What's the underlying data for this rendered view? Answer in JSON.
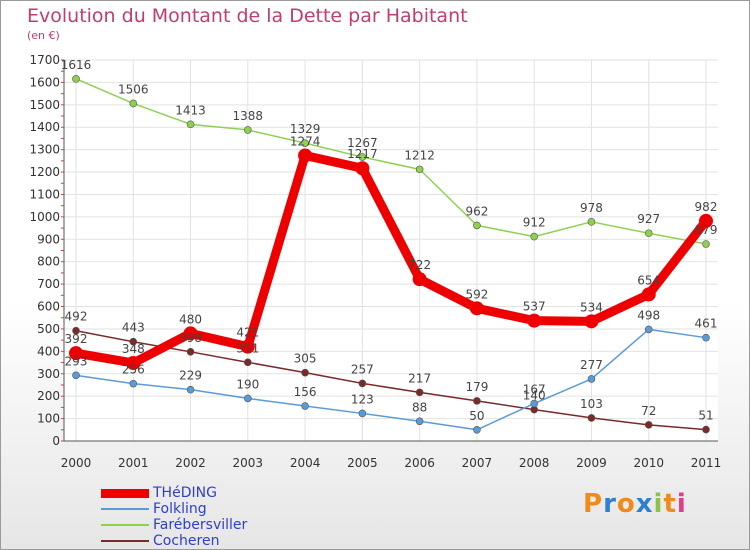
{
  "chart_data": {
    "type": "line",
    "title": "Evolution du Montant de la Dette par Habitant",
    "subtitle": "(en €)",
    "xlabel": "",
    "ylabel": "",
    "x": [
      "2000",
      "2001",
      "2002",
      "2003",
      "2004",
      "2005",
      "2006",
      "2007",
      "2008",
      "2009",
      "2010",
      "2011"
    ],
    "ylim": [
      0,
      1700
    ],
    "yticks": [
      0,
      100,
      200,
      300,
      400,
      500,
      600,
      700,
      800,
      900,
      1000,
      1100,
      1200,
      1300,
      1400,
      1500,
      1600,
      1700
    ],
    "grid": true,
    "legend_position": "bottom-left",
    "series": [
      {
        "name": "THéDING",
        "color": "#ee0000",
        "values": [
          392,
          348,
          480,
          421,
          1274,
          1217,
          722,
          592,
          537,
          534,
          654,
          982
        ],
        "labels": [
          "392",
          "348",
          "480",
          "421",
          "1274",
          "1217",
          "722",
          "592",
          "537",
          "534",
          "654",
          "982"
        ]
      },
      {
        "name": "Folkling",
        "color": "#5b9bd5",
        "values": [
          293,
          256,
          229,
          190,
          156,
          123,
          88,
          50,
          167,
          277,
          498,
          461
        ],
        "labels": [
          "293",
          "256",
          "229",
          "190",
          "156",
          "123",
          "88",
          "50",
          "167",
          "277",
          "498",
          "461"
        ]
      },
      {
        "name": "Farébersviller",
        "color": "#8fd14f",
        "values": [
          1616,
          1506,
          1413,
          1388,
          1329,
          1267,
          1212,
          962,
          912,
          978,
          927,
          879
        ],
        "labels": [
          "1616",
          "1506",
          "1413",
          "1388",
          "1329",
          "1267",
          "1212",
          "962",
          "912",
          "978",
          "927",
          "879"
        ]
      },
      {
        "name": "Cocheren",
        "color": "#7b2a2a",
        "values": [
          492,
          443,
          398,
          351,
          305,
          257,
          217,
          179,
          140,
          103,
          72,
          51
        ],
        "labels": [
          "492",
          "443",
          "398",
          "351",
          "305",
          "257",
          "217",
          "179",
          "140",
          "103",
          "72",
          "51"
        ]
      }
    ]
  },
  "logo": {
    "text": "Proxiti",
    "letters": [
      "P",
      "r",
      "o",
      "x",
      "i",
      "t",
      "i"
    ],
    "colors": [
      "#f08a1a",
      "#2f7fd0",
      "#f08a1a",
      "#2f7fd0",
      "#8bc34a",
      "#f08a1a",
      "#e03c8a"
    ]
  }
}
